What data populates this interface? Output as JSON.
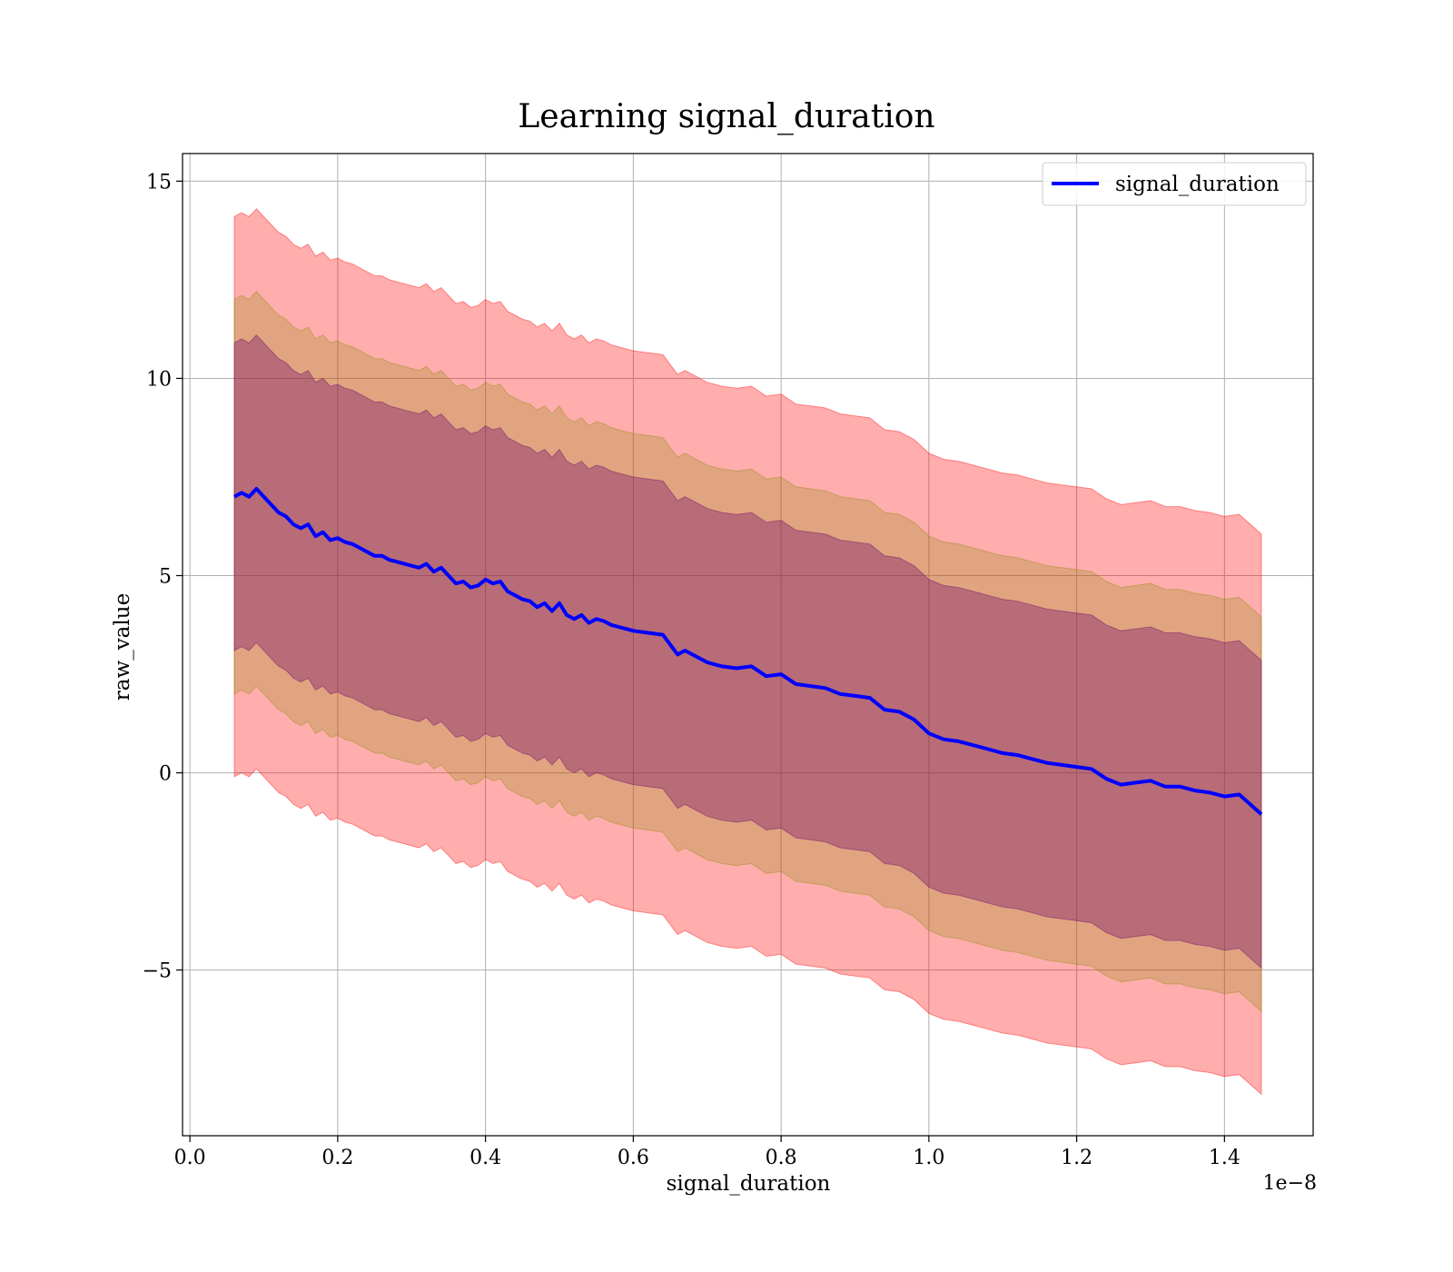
{
  "chart_data": {
    "type": "line",
    "title": "Learning signal_duration",
    "xlabel": "signal_duration",
    "ylabel": "raw_value",
    "x_offset_label": "1e−8",
    "xlim": [
      -0.01,
      1.52
    ],
    "ylim": [
      -9.2,
      15.7
    ],
    "x_ticks": [
      0.0,
      0.2,
      0.4,
      0.6,
      0.8,
      1.0,
      1.2,
      1.4
    ],
    "x_tick_labels": [
      "0.0",
      "0.2",
      "0.4",
      "0.6",
      "0.8",
      "1.0",
      "1.2",
      "1.4"
    ],
    "y_ticks": [
      -5,
      0,
      5,
      10,
      15
    ],
    "y_tick_labels": [
      "−5",
      "0",
      "5",
      "10",
      "15"
    ],
    "grid": true,
    "legend": {
      "position": "top-right",
      "entries": [
        "signal_duration"
      ]
    },
    "colors": {
      "line": "#0000ff",
      "band_outer": "#ff0000",
      "band_mid": "#8b8b00",
      "band_inner": "#6a006a"
    },
    "band_half_widths": [
      3.9,
      5.0,
      7.1
    ],
    "series": [
      {
        "name": "signal_duration",
        "x": [
          0.06,
          0.07,
          0.08,
          0.09,
          0.1,
          0.11,
          0.12,
          0.13,
          0.14,
          0.15,
          0.16,
          0.17,
          0.18,
          0.19,
          0.2,
          0.21,
          0.22,
          0.23,
          0.24,
          0.25,
          0.26,
          0.27,
          0.28,
          0.29,
          0.3,
          0.31,
          0.32,
          0.33,
          0.34,
          0.35,
          0.36,
          0.37,
          0.38,
          0.39,
          0.4,
          0.41,
          0.42,
          0.43,
          0.44,
          0.45,
          0.46,
          0.47,
          0.48,
          0.49,
          0.5,
          0.51,
          0.52,
          0.53,
          0.54,
          0.55,
          0.56,
          0.57,
          0.58,
          0.59,
          0.6,
          0.62,
          0.64,
          0.66,
          0.67,
          0.68,
          0.7,
          0.72,
          0.74,
          0.76,
          0.78,
          0.8,
          0.82,
          0.84,
          0.86,
          0.88,
          0.9,
          0.92,
          0.94,
          0.96,
          0.98,
          1.0,
          1.02,
          1.04,
          1.06,
          1.08,
          1.1,
          1.12,
          1.14,
          1.16,
          1.18,
          1.2,
          1.22,
          1.24,
          1.26,
          1.28,
          1.3,
          1.32,
          1.34,
          1.36,
          1.38,
          1.4,
          1.42,
          1.45
        ],
        "y": [
          7.0,
          7.1,
          7.0,
          7.2,
          7.0,
          6.8,
          6.6,
          6.5,
          6.3,
          6.2,
          6.3,
          6.0,
          6.1,
          5.9,
          5.95,
          5.85,
          5.8,
          5.7,
          5.6,
          5.5,
          5.5,
          5.4,
          5.35,
          5.3,
          5.25,
          5.2,
          5.3,
          5.1,
          5.2,
          5.0,
          4.8,
          4.85,
          4.7,
          4.75,
          4.9,
          4.8,
          4.85,
          4.6,
          4.5,
          4.4,
          4.35,
          4.2,
          4.3,
          4.1,
          4.3,
          4.0,
          3.9,
          4.0,
          3.8,
          3.9,
          3.85,
          3.75,
          3.7,
          3.65,
          3.6,
          3.55,
          3.5,
          3.0,
          3.1,
          3.0,
          2.8,
          2.7,
          2.65,
          2.7,
          2.45,
          2.5,
          2.25,
          2.2,
          2.15,
          2.0,
          1.95,
          1.9,
          1.6,
          1.55,
          1.35,
          1.0,
          0.85,
          0.8,
          0.7,
          0.6,
          0.5,
          0.45,
          0.35,
          0.25,
          0.2,
          0.15,
          0.1,
          -0.15,
          -0.3,
          -0.25,
          -0.2,
          -0.35,
          -0.35,
          -0.45,
          -0.5,
          -0.6,
          -0.55,
          -1.05
        ]
      }
    ]
  }
}
